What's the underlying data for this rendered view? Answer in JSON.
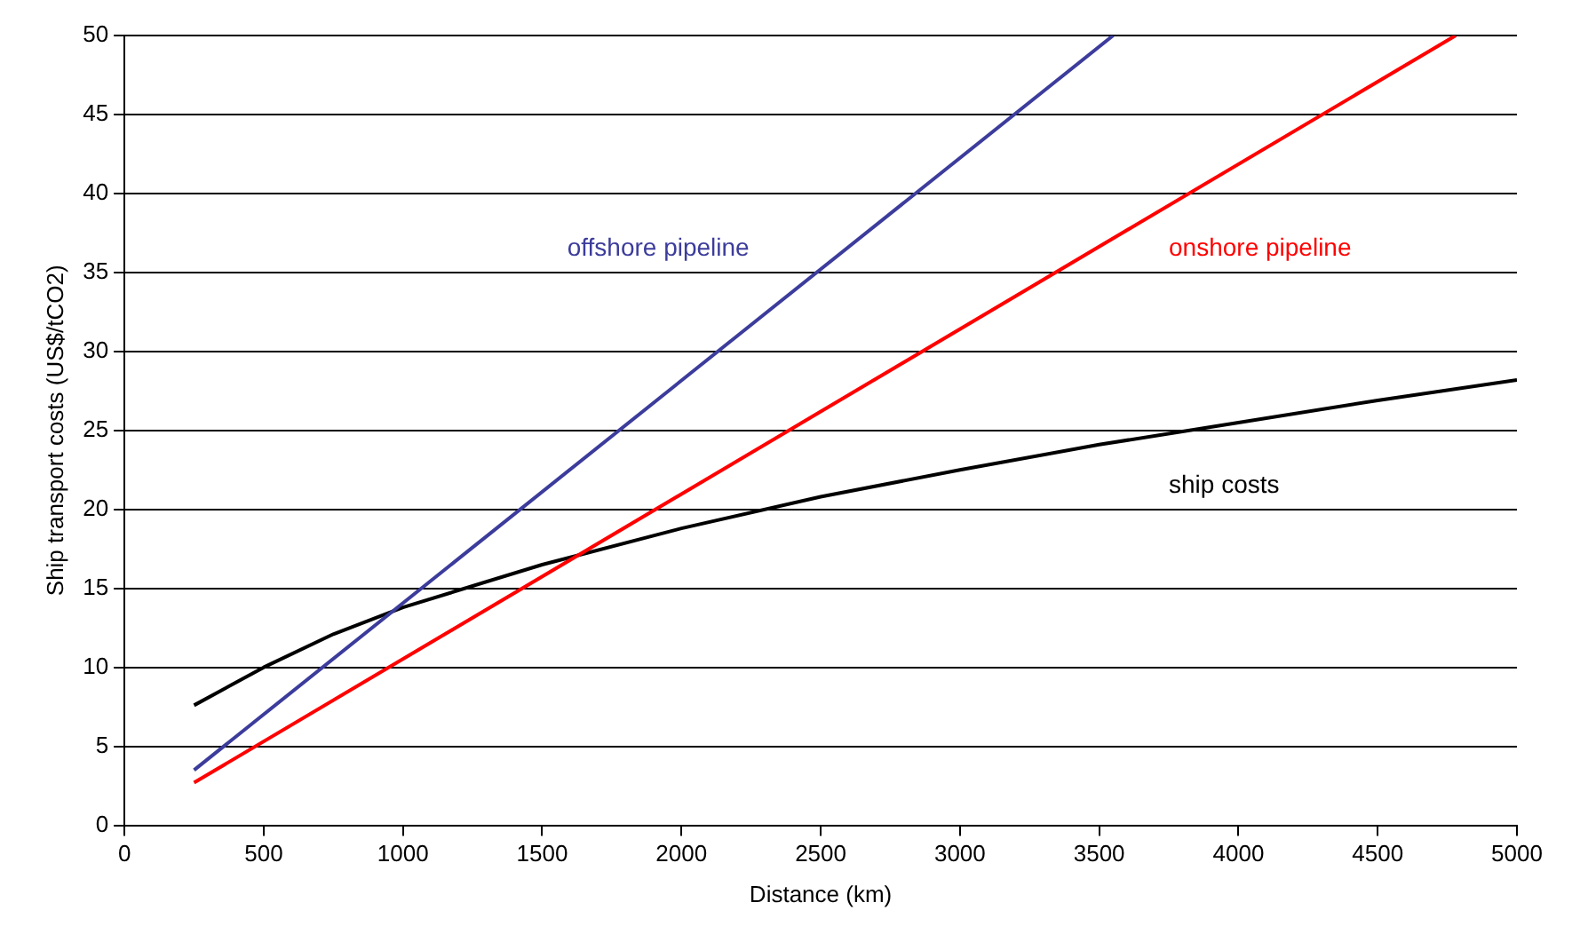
{
  "chart_data": {
    "type": "line",
    "xlabel": "Distance (km)",
    "ylabel": "Ship transport costs (US$/tCO2)",
    "xlim": [
      0,
      5000
    ],
    "xticks": [
      0,
      500,
      1000,
      1500,
      2000,
      2500,
      3000,
      3500,
      4000,
      4500,
      5000
    ],
    "ylim": [
      0,
      50
    ],
    "yticks": [
      0,
      5,
      10,
      15,
      20,
      25,
      30,
      35,
      40,
      45,
      50
    ],
    "grid": "y",
    "legend": false,
    "marker": "none",
    "line_style": "solid",
    "series": [
      {
        "name": "offshore pipeline",
        "color": "#3c3c9c",
        "x": [
          250,
          3550
        ],
        "values": [
          3.5,
          50
        ]
      },
      {
        "name": "onshore pipeline",
        "color": "#ff0000",
        "x": [
          250,
          4780
        ],
        "values": [
          2.7,
          50
        ]
      },
      {
        "name": "ship costs",
        "color": "#000000",
        "x": [
          250,
          500,
          750,
          1000,
          1500,
          2000,
          2500,
          3000,
          3500,
          4000,
          4500,
          5000
        ],
        "values": [
          7.6,
          10.0,
          12.1,
          13.8,
          16.5,
          18.8,
          20.8,
          22.5,
          24.1,
          25.5,
          26.9,
          28.2
        ]
      }
    ]
  }
}
